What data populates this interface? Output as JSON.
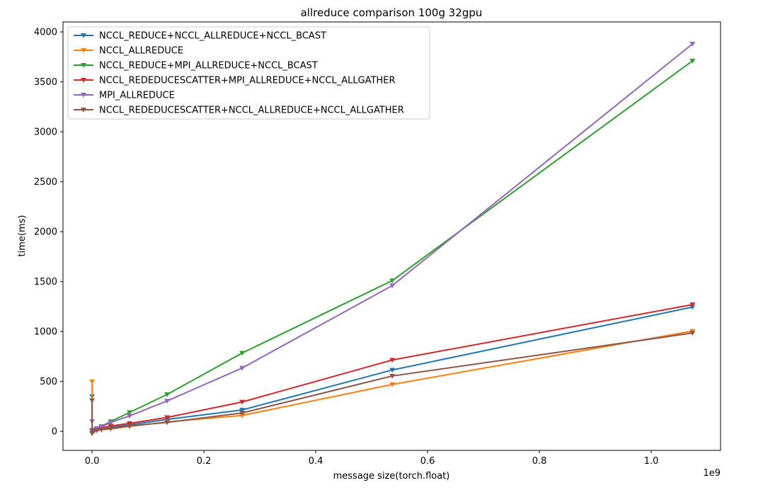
{
  "chart_data": {
    "type": "line",
    "title": "allreduce comparison 100g 32gpu",
    "xlabel": "message size(torch.float)",
    "ylabel": "time(ms)",
    "x_offset_label": "1e9",
    "xlim": [
      -52000000,
      1124000000
    ],
    "ylim": [
      -190,
      4100
    ],
    "x_ticks": [
      0,
      200000000,
      400000000,
      600000000,
      800000000,
      1000000000
    ],
    "x_tick_labels": [
      "0.0",
      "0.2",
      "0.4",
      "0.6",
      "0.8",
      "1.0"
    ],
    "y_ticks": [
      0,
      500,
      1000,
      1500,
      2000,
      2500,
      3000,
      3500,
      4000
    ],
    "y_tick_labels": [
      "0",
      "500",
      "1000",
      "1500",
      "2000",
      "2500",
      "3000",
      "3500",
      "4000"
    ],
    "legend_position": "top-left",
    "grid": false,
    "marker": "triangle-down",
    "x": [
      1,
      1024,
      4194304,
      8388608,
      16777216,
      33554432,
      67108864,
      134217728,
      268435456,
      536870912,
      1073741824
    ],
    "series": [
      {
        "name": "NCCL_REDUCE+NCCL_ALLREDUCE+NCCL_BCAST",
        "color": "#1f77b4",
        "values": [
          350,
          3,
          8,
          15,
          22,
          40,
          65,
          120,
          215,
          615,
          1245
        ]
      },
      {
        "name": "NCCL_ALLREDUCE",
        "color": "#ff7f0e",
        "values": [
          500,
          2,
          6,
          10,
          15,
          25,
          50,
          95,
          160,
          470,
          1005
        ]
      },
      {
        "name": "NCCL_REDUCE+MPI_ALLREDUCE+NCCL_BCAST",
        "color": "#2ca02c",
        "values": [
          5,
          5,
          15,
          30,
          50,
          100,
          190,
          370,
          785,
          1510,
          3710
        ]
      },
      {
        "name": "NCCL_REDEDUCESCATTER+MPI_ALLREDUCE+NCCL_ALLGATHER",
        "color": "#d62728",
        "values": [
          10,
          3,
          10,
          20,
          35,
          55,
          80,
          140,
          295,
          715,
          1270
        ]
      },
      {
        "name": "MPI_ALLREDUCE",
        "color": "#9467bd",
        "values": [
          100,
          5,
          15,
          30,
          45,
          90,
          155,
          305,
          635,
          1460,
          3880
        ]
      },
      {
        "name": "NCCL_REDEDUCESCATTER+NCCL_ALLREDUCE+NCCL_ALLGATHER",
        "color": "#8c564b",
        "values": [
          310,
          -20,
          5,
          10,
          20,
          30,
          55,
          90,
          185,
          555,
          985
        ]
      }
    ]
  }
}
